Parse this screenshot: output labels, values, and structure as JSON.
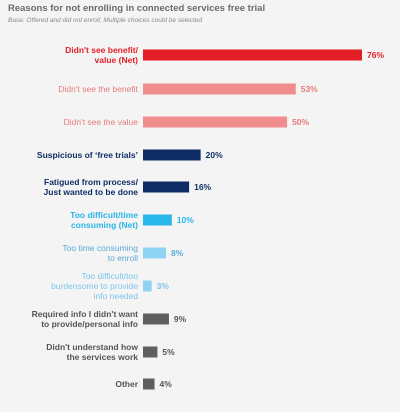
{
  "chart_data": {
    "type": "bar",
    "orientation": "horizontal",
    "title": "Reasons for not enrolling in connected services free trial",
    "subtitle": "Base: Offered and did not enroll; Multiple choices could be selected",
    "value_suffix": "%",
    "xlim": [
      0,
      100
    ],
    "grid": false,
    "legend": "none",
    "bars": [
      {
        "label": [
          "Didn't see benefit/",
          "value (Net)"
        ],
        "value": 76,
        "color": "#e31e24",
        "bold": true,
        "label_color": "#e31e24"
      },
      {
        "label": [
          "Didn't see the benefit"
        ],
        "value": 53,
        "color": "#f08c8c",
        "bold": false,
        "label_color": "#e87a7a"
      },
      {
        "label": [
          "Didn't see the value"
        ],
        "value": 50,
        "color": "#f08c8c",
        "bold": false,
        "label_color": "#e87a7a"
      },
      {
        "label": [
          "Suspicious of ‘free trials’"
        ],
        "value": 20,
        "color": "#0f2d64",
        "bold": true,
        "label_color": "#0f2d64"
      },
      {
        "label": [
          "Fatigued from process/",
          "Just wanted to be done"
        ],
        "value": 16,
        "color": "#0f2d64",
        "bold": true,
        "label_color": "#0f2d64"
      },
      {
        "label": [
          "Too difficult/time",
          "consuming (Net)"
        ],
        "value": 10,
        "color": "#29b6e8",
        "bold": true,
        "label_color": "#29b6e8"
      },
      {
        "label": [
          "Too time consuming",
          "to enroll"
        ],
        "value": 8,
        "color": "#8fd3f2",
        "bold": false,
        "label_color": "#5aa9d6"
      },
      {
        "label": [
          "Too difficult/too",
          "burdensome to provide",
          "info needed"
        ],
        "value": 3,
        "color": "#8fd3f2",
        "bold": false,
        "label_color": "#7cc6ec"
      },
      {
        "label": [
          "Required info I didn't want",
          "to provide/personal info"
        ],
        "value": 9,
        "color": "#5f5f5f",
        "bold": true,
        "label_color": "#555555"
      },
      {
        "label": [
          "Didn't understand how",
          "the services work"
        ],
        "value": 5,
        "color": "#5f5f5f",
        "bold": true,
        "label_color": "#555555"
      },
      {
        "label": [
          "Other"
        ],
        "value": 4,
        "color": "#5f5f5f",
        "bold": true,
        "label_color": "#555555"
      }
    ]
  }
}
